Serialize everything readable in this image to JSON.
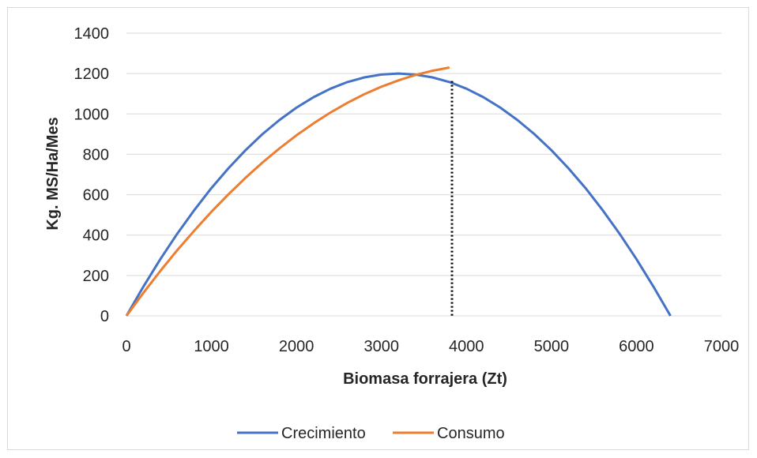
{
  "chart_data": {
    "type": "line",
    "title": "",
    "xlabel": "Biomasa forrajera (Zt)",
    "ylabel": "Kg. MS/Ha/Mes",
    "xlim": [
      0,
      7000
    ],
    "ylim": [
      0,
      1400
    ],
    "x_ticks": [
      "0",
      "1000",
      "2000",
      "3000",
      "4000",
      "5000",
      "6000",
      "7000"
    ],
    "y_ticks": [
      "0",
      "200",
      "400",
      "600",
      "800",
      "1000",
      "1200",
      "1400"
    ],
    "grid": "horizontal",
    "legend": "bottom",
    "series": [
      {
        "name": "Crecimiento",
        "color": "#4472c4",
        "x": [
          0,
          200,
          400,
          600,
          800,
          1000,
          1200,
          1400,
          1600,
          1800,
          2000,
          2200,
          2400,
          2600,
          2800,
          3000,
          3200,
          3400,
          3600,
          3800,
          4000,
          4200,
          4400,
          4600,
          4800,
          5000,
          5200,
          5400,
          5600,
          5800,
          6000,
          6200,
          6400
        ],
        "y": [
          0,
          145,
          281,
          408,
          525,
          633,
          731,
          820,
          900,
          970,
          1031,
          1083,
          1125,
          1158,
          1181,
          1195,
          1200,
          1195,
          1181,
          1158,
          1125,
          1083,
          1031,
          970,
          900,
          820,
          731,
          633,
          525,
          408,
          281,
          145,
          0
        ]
      },
      {
        "name": "Consumo",
        "color": "#ed7d31",
        "x": [
          0,
          200,
          400,
          600,
          800,
          1000,
          1200,
          1400,
          1600,
          1800,
          2000,
          2200,
          2400,
          2600,
          2800,
          3000,
          3200,
          3400,
          3600,
          3800
        ],
        "y": [
          0,
          114,
          223,
          326,
          423,
          516,
          602,
          683,
          759,
          829,
          894,
          953,
          1007,
          1055,
          1098,
          1135,
          1166,
          1193,
          1214,
          1230
        ]
      }
    ],
    "annotations": [
      {
        "type": "vertical-dotted-line",
        "x": 3830,
        "y": 1163
      }
    ]
  }
}
